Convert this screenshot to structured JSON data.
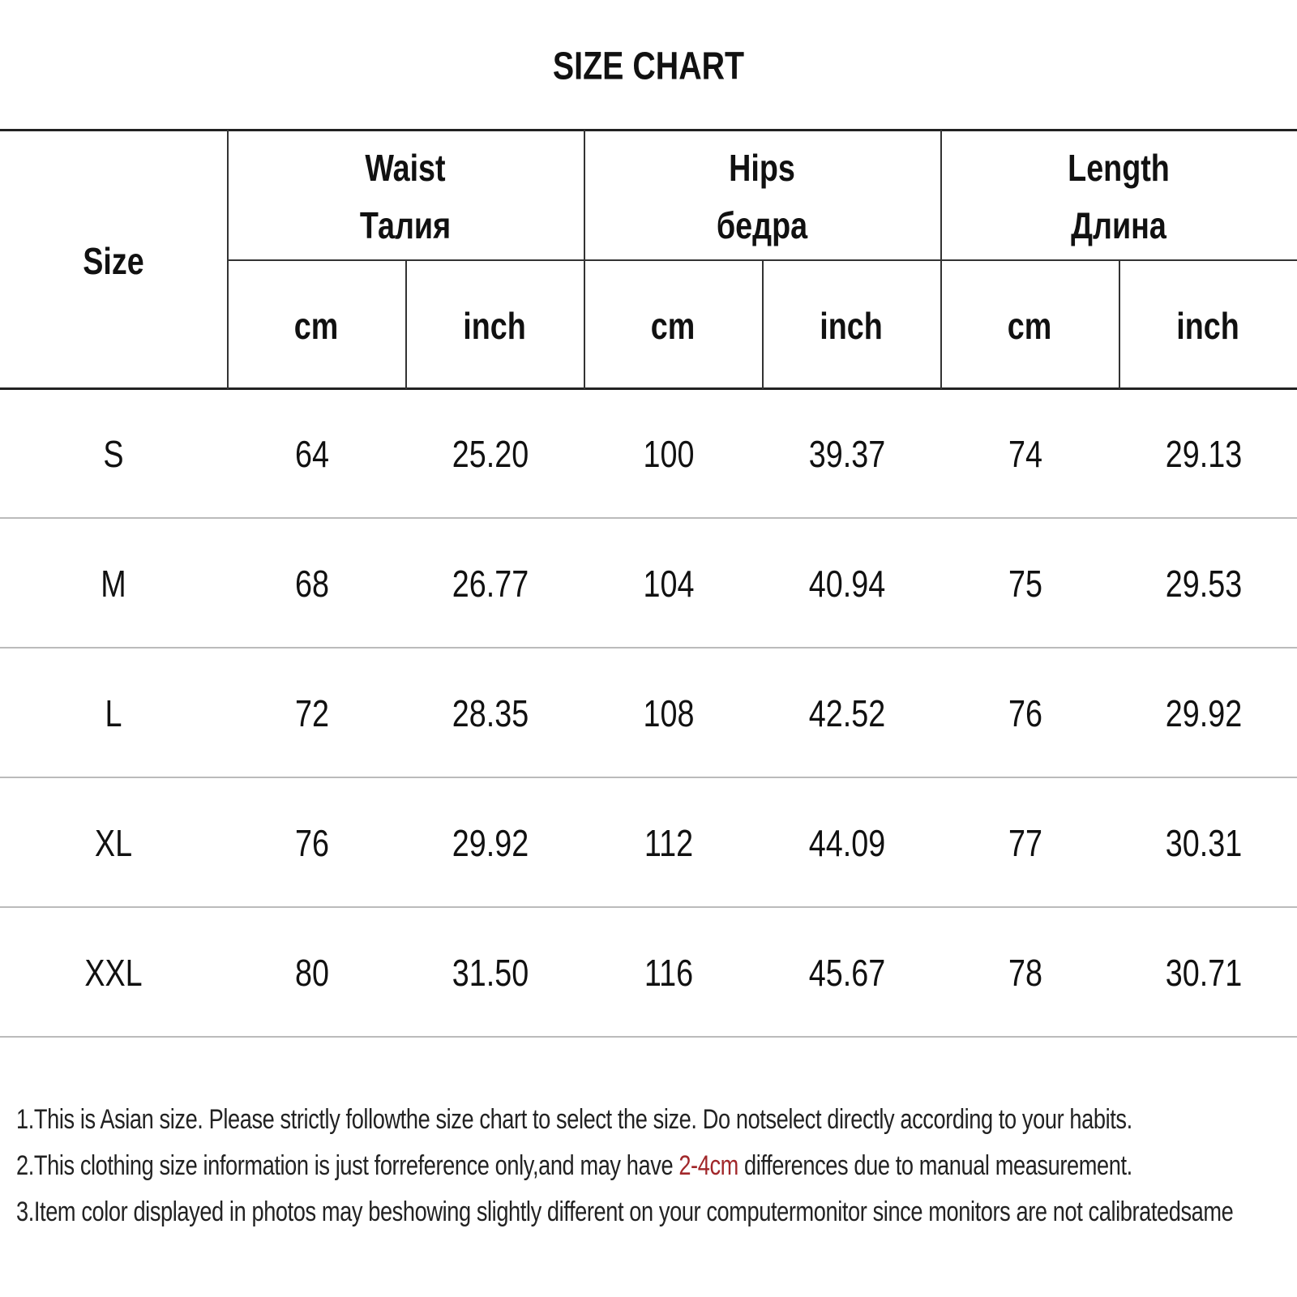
{
  "title": "SIZE CHART",
  "table": {
    "size_header": "Size",
    "groups": [
      {
        "name": "Waist",
        "name_ru": "Талия",
        "units": [
          "cm",
          "inch"
        ]
      },
      {
        "name": "Hips",
        "name_ru": "бедра",
        "units": [
          "cm",
          "inch"
        ]
      },
      {
        "name": "Length",
        "name_ru": "Длина",
        "units": [
          "cm",
          "inch"
        ]
      }
    ],
    "rows": [
      [
        "S",
        "64",
        "25.20",
        "100",
        "39.37",
        "74",
        "29.13"
      ],
      [
        "M",
        "68",
        "26.77",
        "104",
        "40.94",
        "75",
        "29.53"
      ],
      [
        "L",
        "72",
        "28.35",
        "108",
        "42.52",
        "76",
        "29.92"
      ],
      [
        "XL",
        "76",
        "29.92",
        "112",
        "44.09",
        "77",
        "30.31"
      ],
      [
        "XXL",
        "80",
        "31.50",
        "116",
        "45.67",
        "78",
        "30.71"
      ]
    ]
  },
  "notes": [
    [
      "1.This is Asian size. Please strictly followthe size chart to select the size. Do notselect directly according to your habits."
    ],
    [
      "2.This clothing size information is just forreference only,and may have ",
      "2-4cm",
      " differences due to manual measurement."
    ],
    [
      "3.Item color displayed in photos may beshowing slightly different on your computermonitor since monitors are not calibratedsame"
    ]
  ]
}
